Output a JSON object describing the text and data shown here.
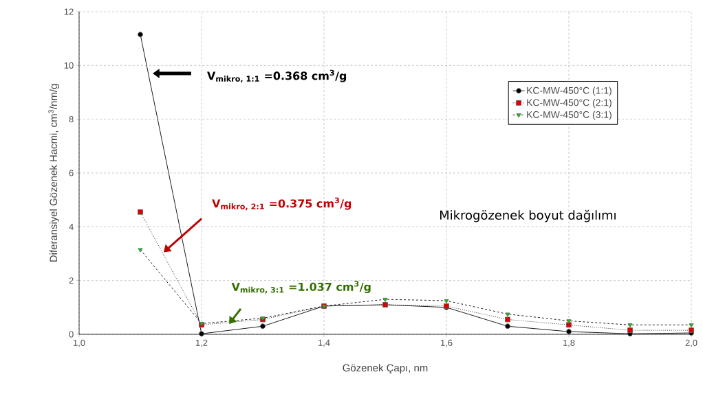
{
  "chart_data": {
    "type": "line",
    "xlabel": "Gözenek Çapı, nm",
    "ylabel": "Diferansiyel Gözenek Hacmi, cm$^{3}$/nm/g",
    "x": [
      1.1,
      1.2,
      1.3,
      1.4,
      1.5,
      1.6,
      1.7,
      1.8,
      1.9,
      2.0
    ],
    "series": [
      {
        "name": "KC-MW-450°C (1:1)",
        "color": "#000000",
        "marker": "circle",
        "line_style": "solid",
        "values": [
          11.15,
          0.02,
          0.3,
          1.05,
          1.1,
          1.0,
          0.3,
          0.1,
          0.02,
          0.05
        ]
      },
      {
        "name": "KC-MW-450°C (2:1)",
        "color": "#e00000",
        "marker": "square",
        "line_style": "dotted",
        "values": [
          4.55,
          0.35,
          0.55,
          1.05,
          1.1,
          1.05,
          0.55,
          0.35,
          0.15,
          0.15
        ]
      },
      {
        "name": "KC-MW-450°C (3:1)",
        "color": "#00d000",
        "marker": "triangle",
        "line_style": "dashed",
        "values": [
          3.15,
          0.4,
          0.6,
          1.05,
          1.3,
          1.25,
          0.75,
          0.5,
          0.35,
          0.35
        ]
      }
    ],
    "xlim": [
      1.0,
      2.0
    ],
    "xticks": [
      {
        "value": 1.0,
        "label": "1,0"
      },
      {
        "value": 1.2,
        "label": "1,2"
      },
      {
        "value": 1.4,
        "label": "1,4"
      },
      {
        "value": 1.6,
        "label": "1,6"
      },
      {
        "value": 1.8,
        "label": "1,8"
      },
      {
        "value": 2.0,
        "label": "2,0"
      }
    ],
    "ylim": [
      0,
      12
    ],
    "yticks": [
      0,
      2,
      4,
      6,
      8,
      10,
      12
    ],
    "grid": true,
    "legend": "top right",
    "annotations": [
      "**V$_{mikro, 1:1}$ =0.368 cm$^{3}$/g**",
      "**V$_{mikro, 2:1}$ =0.375 cm$^{3}$/g**",
      "**V$_{mikro, 3:1}$ =1.037 cm$^{3}$/g**",
      "Mikrogözenek boyut dağılımı"
    ]
  }
}
